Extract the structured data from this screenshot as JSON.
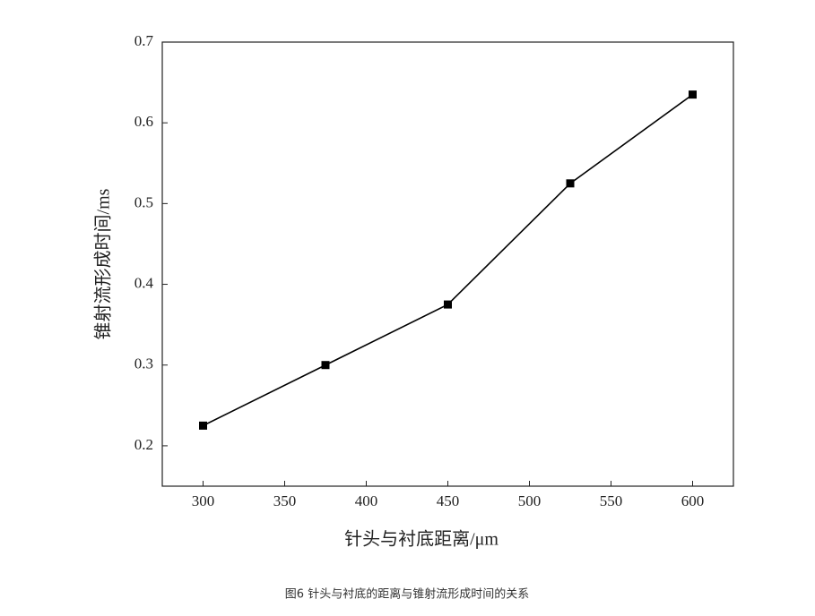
{
  "chart_data": {
    "type": "line",
    "x_label": "针头与衬底距离/μm",
    "y_label": "锥射流形成时间/ms",
    "caption": "图6   针头与衬底的距离与锥射流形成时间的关系",
    "x": [
      300,
      375,
      450,
      525,
      600
    ],
    "series": [
      {
        "color": "#000000",
        "values": [
          0.225,
          0.3,
          0.375,
          0.525,
          0.635
        ]
      }
    ],
    "xlim": [
      275,
      625
    ],
    "xticks": [
      300,
      350,
      400,
      450,
      500,
      550,
      600
    ],
    "ylim": [
      0.15,
      0.7
    ],
    "yticks": [
      0.2,
      0.3,
      0.4,
      0.5,
      0.6,
      0.7
    ]
  }
}
